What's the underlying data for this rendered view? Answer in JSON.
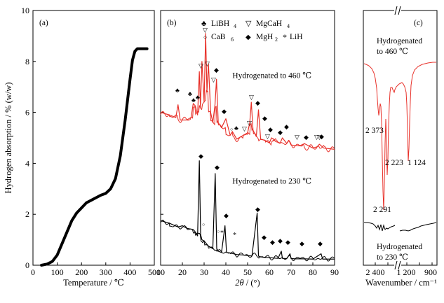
{
  "chart_data": [
    {
      "panel_label": "(a)",
      "type": "line",
      "xlabel": "Temperature / ℃",
      "ylabel": "Hydrogen absorption / % (w/w)",
      "xlim": [
        0,
        500
      ],
      "ylim": [
        0,
        10
      ],
      "x_ticks": [
        "0",
        "100",
        "200",
        "300",
        "400",
        "500"
      ],
      "y_ticks": [
        "0",
        "2",
        "4",
        "6",
        "8",
        "10"
      ],
      "series": [
        {
          "color": "#000000",
          "x": [
            35,
            60,
            80,
            100,
            120,
            140,
            160,
            180,
            200,
            220,
            240,
            260,
            280,
            300,
            320,
            340,
            360,
            380,
            400,
            410,
            420,
            430,
            440,
            450,
            460,
            470
          ],
          "y": [
            0.0,
            0.05,
            0.15,
            0.4,
            0.85,
            1.3,
            1.75,
            2.05,
            2.25,
            2.45,
            2.55,
            2.65,
            2.75,
            2.82,
            3.0,
            3.4,
            4.3,
            5.7,
            7.3,
            8.05,
            8.4,
            8.5,
            8.5,
            8.5,
            8.5,
            8.5
          ]
        }
      ]
    },
    {
      "panel_label": "(b)",
      "type": "line",
      "xlabel": "2θ / (°)",
      "xlabel_main": "2θ",
      "xlabel_unit": " / (°)",
      "xlim": [
        10,
        90
      ],
      "x_ticks": [
        "10",
        "20",
        "30",
        "40",
        "50",
        "60",
        "70",
        "80",
        "90"
      ],
      "legend": [
        {
          "symbol": "♣",
          "label": "LiBH",
          "sub": "4"
        },
        {
          "symbol": "▽",
          "label": "MgCaH",
          "sub": "4"
        },
        {
          "symbol": "○",
          "label": "CaB",
          "sub": "6"
        },
        {
          "symbol": "◆",
          "label": "MgH",
          "sub": "2"
        },
        {
          "symbol": "*",
          "label": "LiH",
          "sub": ""
        }
      ],
      "series": [
        {
          "name": "Hydrogenated to 460 ℃",
          "color": "#e8312a",
          "x": [
            10,
            14,
            17,
            18,
            19,
            22,
            24,
            25,
            26,
            27,
            27.8,
            28.3,
            29,
            30,
            30.7,
            31.3,
            32,
            33,
            34,
            35,
            35.7,
            36.5,
            38,
            40,
            42,
            43,
            45,
            48,
            50,
            51,
            51.7,
            52.5,
            54,
            55,
            56,
            58,
            60,
            61,
            62,
            63,
            65,
            66,
            68,
            69,
            70,
            72,
            75,
            76,
            80,
            82,
            83,
            85,
            90
          ],
          "y": [
            6.0,
            5.9,
            5.8,
            6.3,
            5.7,
            5.7,
            5.8,
            6.35,
            6.25,
            5.9,
            7.6,
            6.2,
            8.0,
            6.4,
            9.1,
            6.8,
            7.9,
            6.0,
            5.6,
            6.3,
            7.3,
            5.6,
            5.4,
            5.75,
            5.1,
            5.25,
            4.95,
            5.1,
            5.2,
            5.6,
            6.4,
            5.3,
            5.05,
            6.1,
            4.95,
            4.9,
            4.8,
            5.0,
            4.95,
            4.85,
            4.8,
            5.0,
            4.78,
            4.9,
            4.72,
            4.7,
            4.68,
            4.78,
            4.6,
            4.65,
            4.75,
            4.6,
            4.55
          ]
        },
        {
          "name": "Hydrogenated to 230 ℃",
          "color": "#000000",
          "x": [
            10,
            14,
            18,
            20,
            22,
            25,
            26,
            27,
            27.8,
            28.4,
            29,
            30,
            32,
            34,
            35.1,
            35.8,
            36.5,
            38,
            39.6,
            40.3,
            42,
            45,
            48,
            50,
            52,
            54.4,
            55,
            56,
            58,
            60,
            62,
            64,
            65.5,
            66,
            68,
            69.5,
            70,
            72,
            76,
            80,
            83.8,
            84.5,
            90
          ],
          "y": [
            1.75,
            1.65,
            1.5,
            1.55,
            1.45,
            1.4,
            1.3,
            1.15,
            4.1,
            1.2,
            1.0,
            0.95,
            0.75,
            0.65,
            3.6,
            0.65,
            0.55,
            0.5,
            1.55,
            0.5,
            0.48,
            0.42,
            0.4,
            0.38,
            0.36,
            2.05,
            0.36,
            0.33,
            0.3,
            0.3,
            0.28,
            0.27,
            0.55,
            0.27,
            0.26,
            0.45,
            0.26,
            0.25,
            0.25,
            0.24,
            0.45,
            0.24,
            0.24
          ]
        }
      ],
      "annotations": [
        {
          "text": "Hydrogenated to 460 ℃",
          "x": 43,
          "y": 7.35
        },
        {
          "text": "Hydrogenated to 230 ℃",
          "x": 43,
          "y": 3.2
        }
      ]
    },
    {
      "panel_label": "(c)",
      "type": "line",
      "xlabel": "Wavenumber / cm⁻¹",
      "x_ticks": [
        "2 400",
        "1 200",
        "900"
      ],
      "peak_labels": [
        "2 373",
        "2 223",
        "1 124",
        "2 291"
      ],
      "series": [
        {
          "name": "Hydrogenated to 460 ℃",
          "color": "#e8312a"
        },
        {
          "name": "Hydrogenated to 230 ℃",
          "color": "#000000"
        }
      ]
    }
  ]
}
